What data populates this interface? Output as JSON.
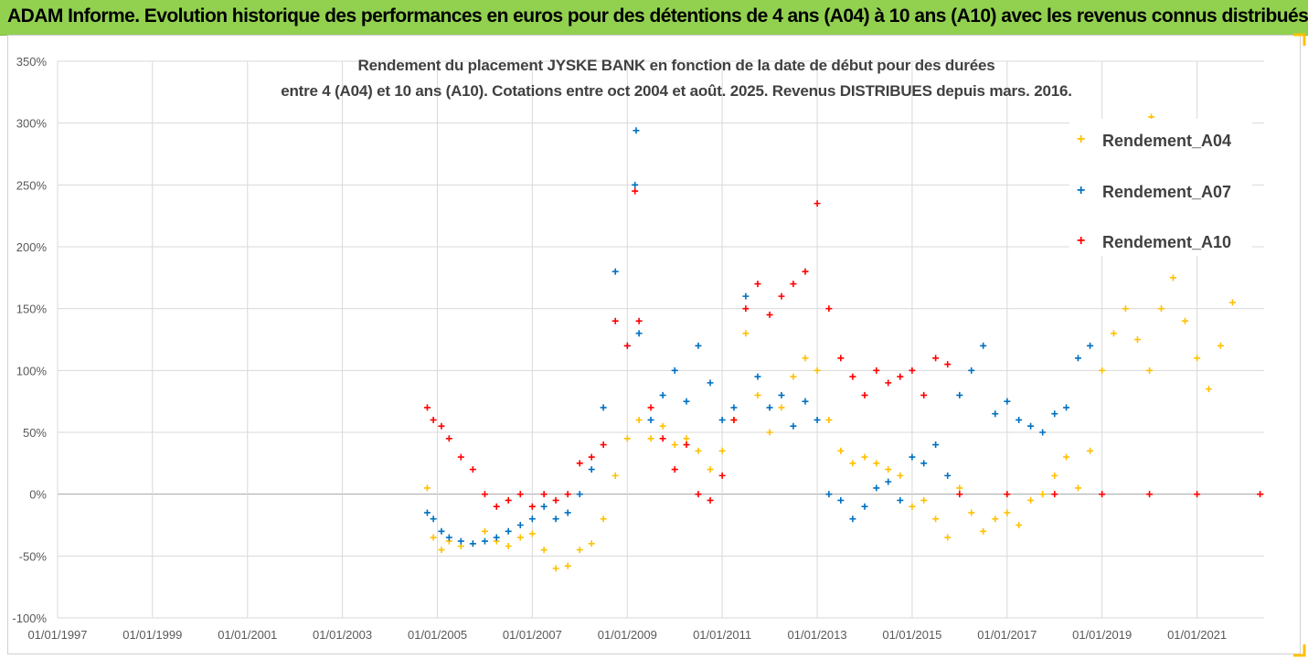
{
  "banner_title": "ADAM Informe. Evolution historique des performances en euros pour des détentions de 4 ans (A04) à 10 ans (A10) avec les revenus connus distribués",
  "colors": {
    "banner_bg": "#92d050",
    "A04": "#ffc000",
    "A07": "#0070c0",
    "A10": "#ff0000",
    "grid": "#d9d9d9",
    "zero_line": "#a6a6a6",
    "axis_text": "#595959",
    "corner_accent": "#ffc000"
  },
  "chart_data": {
    "type": "scatter",
    "title_line1": "Rendement du placement JYSKE BANK en fonction de la date de début pour des durées",
    "title_line2": "entre 4 (A04) et 10 ans (A10). Cotations entre oct 2004 et août. 2025. Revenus DISTRIBUES depuis mars. 2016.",
    "xlabel": "",
    "ylabel": "",
    "x_ticks": [
      "01/01/1997",
      "01/01/1999",
      "01/01/2001",
      "01/01/2003",
      "01/01/2005",
      "01/01/2007",
      "01/01/2009",
      "01/01/2011",
      "01/01/2013",
      "01/01/2015",
      "01/01/2017",
      "01/01/2019",
      "01/01/2021"
    ],
    "y_ticks": [
      "-100%",
      "-50%",
      "0%",
      "50%",
      "100%",
      "150%",
      "200%",
      "250%",
      "300%",
      "350%"
    ],
    "xlim": [
      "1997-01-01",
      "2022-06-01"
    ],
    "ylim": [
      -100,
      350
    ],
    "grid": true,
    "legend_position": "top-right",
    "marker": "+",
    "series": [
      {
        "name": "Rendement_A04",
        "points": [
          [
            "2004-10-15",
            5
          ],
          [
            "2004-12-01",
            -35
          ],
          [
            "2005-02-01",
            -45
          ],
          [
            "2005-04-01",
            -38
          ],
          [
            "2005-07-01",
            -42
          ],
          [
            "2005-10-01",
            -40
          ],
          [
            "2006-01-01",
            -30
          ],
          [
            "2006-04-01",
            -38
          ],
          [
            "2006-07-01",
            -42
          ],
          [
            "2006-10-01",
            -35
          ],
          [
            "2007-01-01",
            -32
          ],
          [
            "2007-04-01",
            -45
          ],
          [
            "2007-07-01",
            -60
          ],
          [
            "2007-10-01",
            -58
          ],
          [
            "2008-01-01",
            -45
          ],
          [
            "2008-04-01",
            -40
          ],
          [
            "2008-07-01",
            -20
          ],
          [
            "2008-10-01",
            15
          ],
          [
            "2009-01-01",
            45
          ],
          [
            "2009-04-01",
            60
          ],
          [
            "2009-07-01",
            45
          ],
          [
            "2009-10-01",
            55
          ],
          [
            "2010-01-01",
            40
          ],
          [
            "2010-04-01",
            45
          ],
          [
            "2010-07-01",
            35
          ],
          [
            "2010-10-01",
            20
          ],
          [
            "2011-01-01",
            35
          ],
          [
            "2011-04-01",
            60
          ],
          [
            "2011-07-01",
            130
          ],
          [
            "2011-10-01",
            80
          ],
          [
            "2012-01-01",
            50
          ],
          [
            "2012-04-01",
            70
          ],
          [
            "2012-07-01",
            95
          ],
          [
            "2012-10-01",
            110
          ],
          [
            "2013-01-01",
            100
          ],
          [
            "2013-04-01",
            60
          ],
          [
            "2013-07-01",
            35
          ],
          [
            "2013-10-01",
            25
          ],
          [
            "2014-01-01",
            30
          ],
          [
            "2014-04-01",
            25
          ],
          [
            "2014-07-01",
            20
          ],
          [
            "2014-10-01",
            15
          ],
          [
            "2015-01-01",
            -10
          ],
          [
            "2015-04-01",
            -5
          ],
          [
            "2015-07-01",
            -20
          ],
          [
            "2015-10-01",
            -35
          ],
          [
            "2016-01-01",
            5
          ],
          [
            "2016-04-01",
            -15
          ],
          [
            "2016-07-01",
            -30
          ],
          [
            "2016-10-01",
            -20
          ],
          [
            "2017-01-01",
            -15
          ],
          [
            "2017-04-01",
            -25
          ],
          [
            "2017-07-01",
            -5
          ],
          [
            "2017-10-01",
            0
          ],
          [
            "2018-01-01",
            15
          ],
          [
            "2018-04-01",
            30
          ],
          [
            "2018-07-01",
            5
          ],
          [
            "2018-10-01",
            35
          ],
          [
            "2019-01-01",
            100
          ],
          [
            "2019-04-01",
            130
          ],
          [
            "2019-07-01",
            150
          ],
          [
            "2019-10-01",
            125
          ],
          [
            "2020-01-01",
            100
          ],
          [
            "2020-04-01",
            150
          ],
          [
            "2020-07-01",
            175
          ],
          [
            "2020-10-01",
            140
          ],
          [
            "2021-01-01",
            110
          ],
          [
            "2021-04-01",
            85
          ],
          [
            "2021-07-01",
            120
          ],
          [
            "2021-10-01",
            155
          ],
          [
            "2020-01-15",
            305
          ]
        ]
      },
      {
        "name": "Rendement_A07",
        "points": [
          [
            "2004-10-15",
            -15
          ],
          [
            "2004-12-01",
            -20
          ],
          [
            "2005-02-01",
            -30
          ],
          [
            "2005-04-01",
            -35
          ],
          [
            "2005-07-01",
            -38
          ],
          [
            "2005-10-01",
            -40
          ],
          [
            "2006-01-01",
            -38
          ],
          [
            "2006-04-01",
            -35
          ],
          [
            "2006-07-01",
            -30
          ],
          [
            "2006-10-01",
            -25
          ],
          [
            "2007-01-01",
            -20
          ],
          [
            "2007-04-01",
            -10
          ],
          [
            "2007-07-01",
            -20
          ],
          [
            "2007-10-01",
            -15
          ],
          [
            "2008-01-01",
            0
          ],
          [
            "2008-04-01",
            20
          ],
          [
            "2008-07-01",
            70
          ],
          [
            "2008-10-01",
            180
          ],
          [
            "2009-01-01",
            120
          ],
          [
            "2009-03-01",
            250
          ],
          [
            "2009-03-10",
            294
          ],
          [
            "2009-04-01",
            130
          ],
          [
            "2009-07-01",
            60
          ],
          [
            "2009-10-01",
            80
          ],
          [
            "2010-01-01",
            100
          ],
          [
            "2010-04-01",
            75
          ],
          [
            "2010-07-01",
            120
          ],
          [
            "2010-10-01",
            90
          ],
          [
            "2011-01-01",
            60
          ],
          [
            "2011-04-01",
            70
          ],
          [
            "2011-07-01",
            160
          ],
          [
            "2011-10-01",
            95
          ],
          [
            "2012-01-01",
            70
          ],
          [
            "2012-04-01",
            80
          ],
          [
            "2012-07-01",
            55
          ],
          [
            "2012-10-01",
            75
          ],
          [
            "2013-01-01",
            60
          ],
          [
            "2013-04-01",
            0
          ],
          [
            "2013-07-01",
            -5
          ],
          [
            "2013-10-01",
            -20
          ],
          [
            "2014-01-01",
            -10
          ],
          [
            "2014-04-01",
            5
          ],
          [
            "2014-07-01",
            10
          ],
          [
            "2014-10-01",
            -5
          ],
          [
            "2015-01-01",
            30
          ],
          [
            "2015-04-01",
            25
          ],
          [
            "2015-07-01",
            40
          ],
          [
            "2015-10-01",
            15
          ],
          [
            "2016-01-01",
            80
          ],
          [
            "2016-04-01",
            100
          ],
          [
            "2016-07-01",
            120
          ],
          [
            "2016-10-01",
            65
          ],
          [
            "2017-01-01",
            75
          ],
          [
            "2017-04-01",
            60
          ],
          [
            "2017-07-01",
            55
          ],
          [
            "2017-10-01",
            50
          ],
          [
            "2018-01-01",
            65
          ],
          [
            "2018-04-01",
            70
          ],
          [
            "2018-07-01",
            110
          ],
          [
            "2018-10-01",
            120
          ]
        ]
      },
      {
        "name": "Rendement_A10",
        "points": [
          [
            "2004-10-15",
            70
          ],
          [
            "2004-12-01",
            60
          ],
          [
            "2005-02-01",
            55
          ],
          [
            "2005-04-01",
            45
          ],
          [
            "2005-07-01",
            30
          ],
          [
            "2005-10-01",
            20
          ],
          [
            "2006-01-01",
            0
          ],
          [
            "2006-04-01",
            -10
          ],
          [
            "2006-07-01",
            -5
          ],
          [
            "2006-10-01",
            0
          ],
          [
            "2007-01-01",
            -10
          ],
          [
            "2007-04-01",
            0
          ],
          [
            "2007-07-01",
            -5
          ],
          [
            "2007-10-01",
            0
          ],
          [
            "2008-01-01",
            25
          ],
          [
            "2008-04-01",
            30
          ],
          [
            "2008-07-01",
            40
          ],
          [
            "2008-10-01",
            140
          ],
          [
            "2009-01-01",
            120
          ],
          [
            "2009-03-01",
            245
          ],
          [
            "2009-04-01",
            140
          ],
          [
            "2009-07-01",
            70
          ],
          [
            "2009-10-01",
            45
          ],
          [
            "2010-01-01",
            20
          ],
          [
            "2010-04-01",
            40
          ],
          [
            "2010-07-01",
            0
          ],
          [
            "2010-10-01",
            -5
          ],
          [
            "2011-01-01",
            15
          ],
          [
            "2011-04-01",
            60
          ],
          [
            "2011-07-01",
            150
          ],
          [
            "2011-10-01",
            170
          ],
          [
            "2012-01-01",
            145
          ],
          [
            "2012-04-01",
            160
          ],
          [
            "2012-07-01",
            170
          ],
          [
            "2012-10-01",
            180
          ],
          [
            "2013-01-01",
            235
          ],
          [
            "2013-04-01",
            150
          ],
          [
            "2013-07-01",
            110
          ],
          [
            "2013-10-01",
            95
          ],
          [
            "2014-01-01",
            80
          ],
          [
            "2014-04-01",
            100
          ],
          [
            "2014-07-01",
            90
          ],
          [
            "2014-10-01",
            95
          ],
          [
            "2015-01-01",
            100
          ],
          [
            "2015-04-01",
            80
          ],
          [
            "2015-07-01",
            110
          ],
          [
            "2015-10-01",
            105
          ],
          [
            "2016-01-01",
            0
          ],
          [
            "2017-01-01",
            0
          ],
          [
            "2018-01-01",
            0
          ],
          [
            "2019-01-01",
            0
          ],
          [
            "2020-01-01",
            0
          ],
          [
            "2021-01-01",
            0
          ],
          [
            "2022-05-01",
            0
          ]
        ]
      }
    ]
  }
}
